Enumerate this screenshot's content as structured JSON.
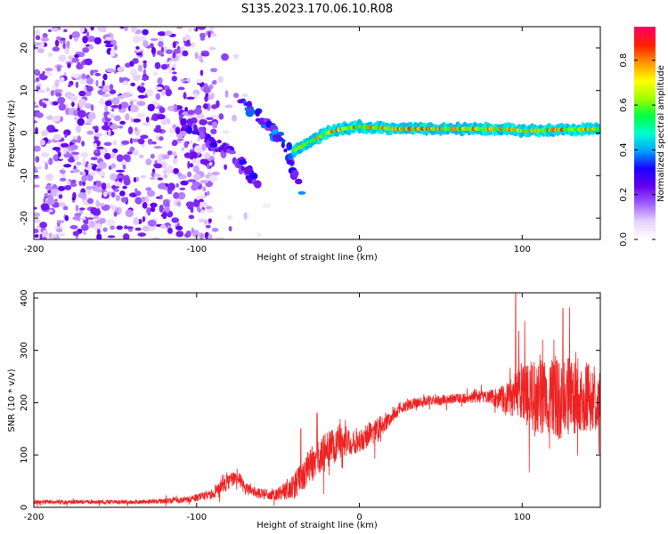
{
  "title": "S135.2023.170.06.10.R08",
  "chart_data": [
    {
      "type": "heatmap",
      "title": "S135.2023.170.06.10.R08",
      "xlabel": "Height of straight line (km)",
      "ylabel": "Frequency (Hz)",
      "xlim": [
        -200,
        148
      ],
      "ylim": [
        -25,
        25
      ],
      "xticks": [
        -200,
        -100,
        0,
        100
      ],
      "xtick_labels": [
        "-200",
        "-100",
        "0",
        "100"
      ],
      "yticks": [
        -20,
        -10,
        0,
        10,
        20
      ],
      "ytick_labels": [
        "-20",
        "-10",
        "0",
        "10",
        "20"
      ],
      "colorbar": {
        "label": "Normalized spectral amplitude",
        "range": [
          0,
          0.95
        ],
        "ticks": [
          0.0,
          0.2,
          0.4,
          0.6,
          0.8
        ],
        "tick_labels": [
          "0.0",
          "0.2",
          "0.4",
          "0.6",
          "0.8"
        ],
        "colors": [
          "#ffffff",
          "#e8d2ff",
          "#a060ff",
          "#6600ee",
          "#1a00ff",
          "#00a0ff",
          "#00ffd0",
          "#00ff40",
          "#a0ff00",
          "#ffff00",
          "#ff9900",
          "#ff2200",
          "#ff0060"
        ]
      },
      "features": [
        {
          "name": "diffuse noise region",
          "x_range": [
            -200,
            -88
          ],
          "y_range": [
            -25,
            25
          ],
          "level": 0.15
        },
        {
          "name": "descending diagonal",
          "points": [
            [
              -73,
              8
            ],
            [
              -60,
              3
            ],
            [
              -50,
              -1
            ],
            [
              -42,
              -6
            ],
            [
              -37,
              -13
            ]
          ],
          "level": 0.3
        },
        {
          "name": "lower diagonal band",
          "points": [
            [
              -110,
              3
            ],
            [
              -95,
              -1
            ],
            [
              -82,
              -4
            ],
            [
              -70,
              -8
            ],
            [
              -62,
              -12
            ]
          ],
          "level": 0.25
        },
        {
          "name": "carrier line",
          "points": [
            [
              -40,
              -4
            ],
            [
              -30,
              -2
            ],
            [
              -20,
              0
            ],
            [
              -10,
              1
            ],
            [
              0,
              1.5
            ],
            [
              20,
              1
            ],
            [
              50,
              1
            ],
            [
              90,
              1
            ],
            [
              100,
              0.5
            ],
            [
              148,
              1
            ]
          ],
          "level": 0.85
        }
      ]
    },
    {
      "type": "line",
      "xlabel": "Height of straight line (km)",
      "ylabel": "SNR (10 * v/v)",
      "xlim": [
        -200,
        148
      ],
      "ylim": [
        0,
        410
      ],
      "xticks": [
        -200,
        -100,
        0,
        100
      ],
      "xtick_labels": [
        "-200",
        "-100",
        "0",
        "100"
      ],
      "yticks": [
        0,
        100,
        200,
        300,
        400
      ],
      "ytick_labels": [
        "0",
        "100",
        "200",
        "300",
        "400"
      ],
      "series": [
        {
          "name": "SNR",
          "color": "#ee2222",
          "x": [
            -200,
            -180,
            -160,
            -140,
            -120,
            -105,
            -90,
            -80,
            -75,
            -70,
            -60,
            -50,
            -40,
            -30,
            -20,
            -10,
            0,
            10,
            20,
            25,
            35,
            45,
            60,
            80,
            90,
            100,
            110,
            120,
            130,
            140,
            148
          ],
          "values": [
            10,
            10,
            10,
            10,
            12,
            15,
            25,
            50,
            60,
            35,
            25,
            25,
            40,
            80,
            110,
            125,
            130,
            145,
            175,
            190,
            200,
            205,
            208,
            212,
            205,
            220,
            210,
            205,
            215,
            210,
            205
          ],
          "noise_amplitude": [
            4,
            4,
            4,
            4,
            5,
            6,
            10,
            15,
            15,
            12,
            10,
            12,
            25,
            35,
            35,
            30,
            25,
            25,
            15,
            12,
            10,
            10,
            10,
            12,
            30,
            60,
            70,
            80,
            75,
            70,
            60
          ],
          "peaks": [
            [
              96,
              410
            ],
            [
              125,
              380
            ],
            [
              -26,
              180
            ],
            [
              -36,
              150
            ]
          ]
        }
      ]
    }
  ]
}
